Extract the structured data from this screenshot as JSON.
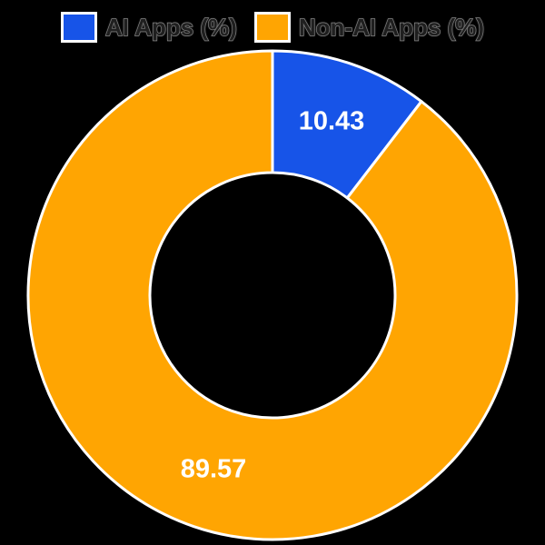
{
  "background": "#000000",
  "legend": {
    "position": "top",
    "items": [
      {
        "label": "AI Apps (%)",
        "color": "#1754e8"
      },
      {
        "label": "Non-AI Apps (%)",
        "color": "#ffa502"
      }
    ]
  },
  "chart_data": {
    "type": "pie",
    "subtype": "donut",
    "title": "",
    "labels": [
      "AI Apps (%)",
      "Non-AI Apps (%)"
    ],
    "values": [
      10.43,
      89.57
    ],
    "data_labels": [
      "10.43",
      "89.57"
    ],
    "colors": [
      "#1754e8",
      "#ffa502"
    ],
    "unit": "%",
    "total": 100,
    "start_angle_deg": 0,
    "direction": "clockwise",
    "inner_radius_ratio": 0.5,
    "segment_border_color": "#ffffff",
    "data_label_color": "#ffffff",
    "legend_position": "top",
    "background": "#000000"
  }
}
